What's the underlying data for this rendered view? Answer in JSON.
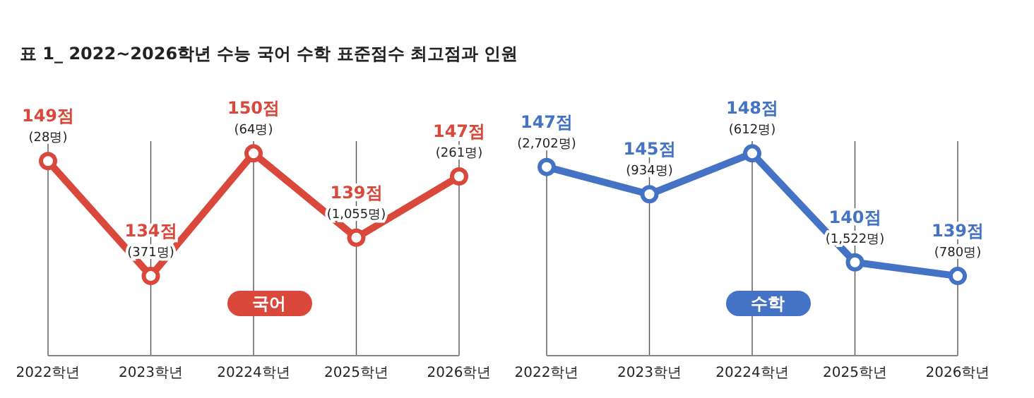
{
  "chart_data": [
    {
      "type": "line",
      "title": "표 1_ 2022~2026학년 수능 국어 수학 표준점수 최고점과 인원",
      "categories": [
        "2022학년",
        "2023학년",
        "20224학년",
        "2025학년",
        "2026학년"
      ],
      "series": [
        {
          "name": "국어",
          "color": "#d9483b",
          "values": [
            149,
            134,
            150,
            139,
            147
          ],
          "value_labels": [
            "149점",
            "134점",
            "150점",
            "139점",
            "147점"
          ]
        }
      ],
      "annotations": [
        "(28명)",
        "(371명)",
        "(64명)",
        "(1,055명)",
        "(261명)"
      ],
      "grid": "x",
      "legend": false,
      "marker": "circle",
      "line_style": "solid"
    },
    {
      "type": "line",
      "categories": [
        "2022학년",
        "2023학년",
        "20224학년",
        "2025학년",
        "2026학년"
      ],
      "series": [
        {
          "name": "수학",
          "color": "#4472c4",
          "values": [
            147,
            145,
            148,
            140,
            139
          ],
          "value_labels": [
            "147점",
            "145점",
            "148점",
            "140점",
            "139점"
          ]
        }
      ],
      "annotations": [
        "(2,702명)",
        "(934명)",
        "(612명)",
        "(1,522명)",
        "(780명)"
      ],
      "grid": "x",
      "legend": false,
      "marker": "circle",
      "line_style": "solid"
    }
  ]
}
